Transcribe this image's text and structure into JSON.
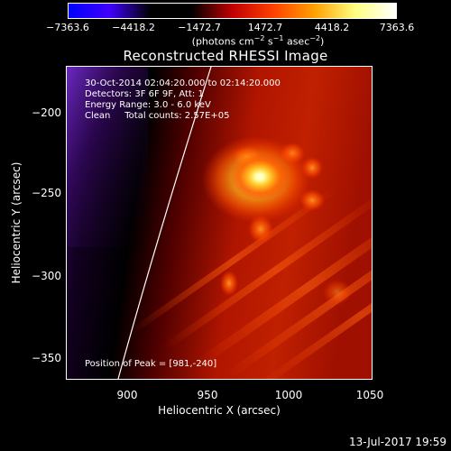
{
  "colorbar": {
    "ticks": [
      "−7363.6",
      "−4418.2",
      "−1472.7",
      "1472.7",
      "4418.2",
      "7363.6"
    ],
    "unit_prefix": "(photons cm",
    "unit_exp1": "−2",
    "unit_mid": " s",
    "unit_exp2": "−1",
    "unit_mid2": " asec",
    "unit_exp3": "−2",
    "unit_suffix": ")",
    "gradient_colors": [
      "#0000ff",
      "#4000ff",
      "#000000",
      "#000000",
      "#c00000",
      "#ff4000",
      "#ffa000",
      "#ffff80",
      "#ffffff"
    ]
  },
  "plot": {
    "title": "Reconstructed RHESSI Image",
    "info_lines": [
      "30-Oct-2014 02:04:20.000 to 02:14:20.000",
      "Detectors: 3F 6F 9F, Att: 1",
      "Energy Range: 3.0 - 6.0 keV",
      "Clean     Total counts: 2.57E+05"
    ],
    "peak_label": "Position of Peak = [981,-240]",
    "xlabel": "Heliocentric X (arcsec)",
    "ylabel": "Heliocentric Y (arcsec)",
    "x_ticks": [
      "900",
      "950",
      "1000",
      "1050"
    ],
    "y_ticks": [
      "−200",
      "−250",
      "−300",
      "−350"
    ],
    "x_tick_values": [
      900,
      950,
      1000,
      1050
    ],
    "y_tick_values": [
      -200,
      -250,
      -300,
      -350
    ],
    "xlim": [
      864,
      1060
    ],
    "ylim": [
      -370,
      -170
    ],
    "peak": [
      981,
      -240
    ]
  },
  "footer": {
    "date": "13-Jul-2017 19:59"
  }
}
